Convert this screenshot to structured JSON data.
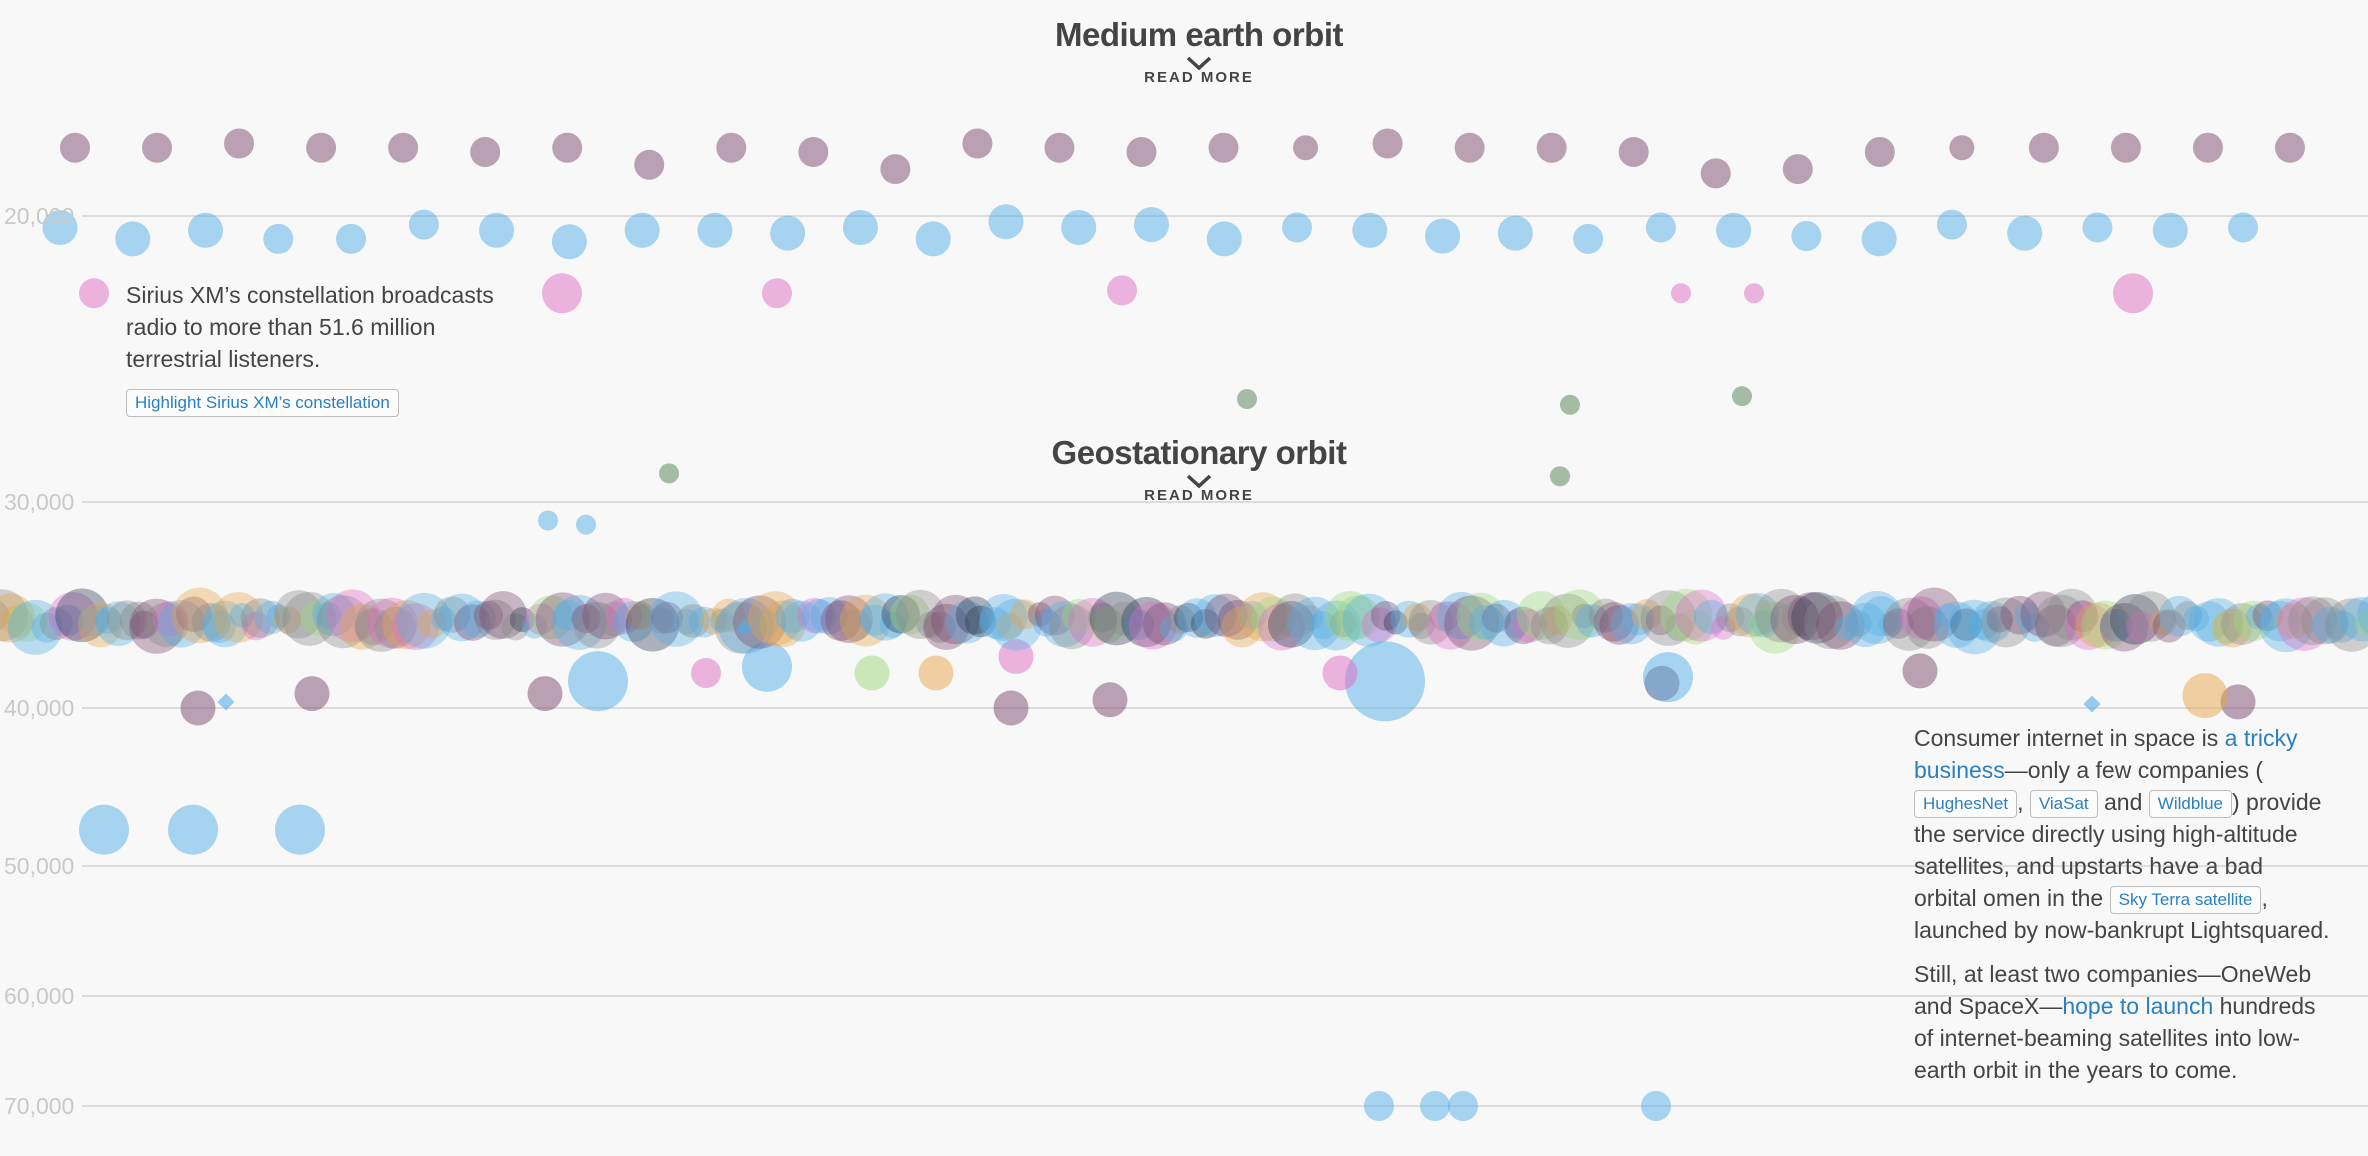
{
  "sections": {
    "meo": {
      "title": "Medium earth orbit",
      "read_more": "READ MORE"
    },
    "geo": {
      "title": "Geostationary orbit",
      "read_more": "READ MORE"
    }
  },
  "notes": {
    "sirius": {
      "text": "Sirius XM’s constellation broadcasts radio to more than 51.6 million terrestrial listeners.",
      "button": "Highlight Sirius XM’s constellation"
    },
    "internet": {
      "p1_a": "Consumer internet in space is ",
      "p1_link": "a tricky business",
      "p1_b": "—only a few companies (",
      "pill_hughes": "HughesNet",
      "comma": ", ",
      "pill_viasat": "ViaSat",
      "and": " and ",
      "pill_wildblue": "Wildblue",
      "p1_c": ") provide the service directly using high-altitude satellites, and upstarts have a bad orbital omen in the ",
      "pill_skyterra": "Sky Terra satellite",
      "p1_d": ", launched by now-bankrupt Lightsquared.",
      "p2_a": "Still, at least two companies—OneWeb and SpaceX—",
      "p2_link": "hope to launch",
      "p2_b": " hundreds of internet-beaming satellites into low-earth orbit in the years to come."
    }
  },
  "colors": {
    "blue": "#53aee6",
    "purple": "#7a4a6e",
    "pink": "#dd6cc4",
    "green": "#4f7f4f",
    "orange": "#e6a44a",
    "lightgreen": "#9cd87a",
    "darkslate": "#2d3a55",
    "gray": "#8a8a8a",
    "grid": "#dcdcdc",
    "tick": "#c9c9c9",
    "link": "#2a7fc1"
  },
  "chart_data": {
    "type": "scatter",
    "ylabel": "",
    "yticks": [
      20000,
      30000,
      40000,
      50000,
      60000,
      70000
    ],
    "ytick_labels": [
      "20,000",
      "30,000",
      "40,000",
      "50,000",
      "60,000",
      "70,000"
    ],
    "ylim": [
      14000,
      72500
    ],
    "grid": true,
    "series": [
      {
        "color": "purple",
        "points": [
          [
            1,
            18400,
            3
          ],
          [
            2,
            18400,
            3
          ],
          [
            3,
            18300,
            3
          ],
          [
            4,
            18400,
            3
          ],
          [
            5,
            18400,
            3
          ],
          [
            6,
            18500,
            3
          ],
          [
            7,
            18400,
            3
          ],
          [
            8,
            18800,
            3
          ],
          [
            9,
            18400,
            3
          ],
          [
            10,
            18500,
            3
          ],
          [
            11,
            18900,
            3
          ],
          [
            12,
            18300,
            3
          ],
          [
            13,
            18400,
            3
          ],
          [
            14,
            18500,
            3
          ],
          [
            15,
            18400,
            3
          ],
          [
            16,
            18400,
            2.5
          ],
          [
            17,
            18300,
            3
          ],
          [
            18,
            18400,
            3
          ],
          [
            19,
            18400,
            3
          ],
          [
            20,
            18500,
            3
          ],
          [
            21,
            19000,
            3
          ],
          [
            22,
            18900,
            3
          ],
          [
            23,
            18500,
            3
          ],
          [
            24,
            18400,
            2.5
          ],
          [
            25,
            18400,
            3
          ],
          [
            26,
            18400,
            3
          ],
          [
            27,
            18400,
            3
          ],
          [
            28,
            18400,
            3
          ],
          [
            1,
            40000,
            3.5
          ],
          [
            2,
            39300,
            3.5
          ],
          [
            3,
            40000,
            3.5
          ],
          [
            4,
            39600,
            3.5
          ],
          [
            5,
            38200,
            3.5
          ],
          [
            6,
            39700,
            3.5
          ],
          [
            7,
            38800,
            3.5
          ],
          [
            8,
            39300,
            3.5
          ]
        ]
      },
      {
        "color": "blue",
        "points": [
          [
            1,
            20400,
            3.5
          ],
          [
            2,
            20800,
            3.5
          ],
          [
            3,
            20500,
            3.5
          ],
          [
            4,
            20800,
            3
          ],
          [
            5,
            20800,
            3
          ],
          [
            6,
            20300,
            3
          ],
          [
            7,
            20500,
            3.5
          ],
          [
            8,
            20900,
            3.5
          ],
          [
            9,
            20500,
            3.5
          ],
          [
            10,
            20500,
            3.5
          ],
          [
            11,
            20600,
            3.5
          ],
          [
            12,
            20400,
            3.5
          ],
          [
            13,
            20800,
            3.5
          ],
          [
            14,
            20200,
            3.5
          ],
          [
            15,
            20400,
            3.5
          ],
          [
            16,
            20300,
            3.5
          ],
          [
            17,
            20800,
            3.5
          ],
          [
            18,
            20400,
            3
          ],
          [
            19,
            20500,
            3.5
          ],
          [
            20,
            20700,
            3.5
          ],
          [
            21,
            20600,
            3.5
          ],
          [
            22,
            20800,
            3
          ],
          [
            23,
            20400,
            3
          ],
          [
            24,
            20500,
            3.5
          ],
          [
            25,
            20700,
            3
          ],
          [
            26,
            20800,
            3.5
          ],
          [
            27,
            20300,
            3
          ],
          [
            28,
            20600,
            3.5
          ],
          [
            29,
            20400,
            3
          ],
          [
            30,
            20500,
            3.5
          ],
          [
            31,
            20400,
            3
          ],
          [
            1,
            30900,
            2
          ],
          [
            2,
            31100,
            2
          ],
          [
            1,
            38700,
            6
          ],
          [
            2,
            38000,
            5
          ],
          [
            3,
            38700,
            8
          ],
          [
            4,
            38500,
            5
          ],
          [
            1,
            47700,
            5
          ],
          [
            2,
            47700,
            5
          ],
          [
            3,
            47700,
            5
          ],
          [
            1,
            70000,
            3
          ],
          [
            2,
            70000,
            3
          ],
          [
            3,
            70000,
            3
          ],
          [
            4,
            70000,
            3
          ]
        ]
      },
      {
        "color": "pink",
        "points": [
          [
            1,
            22700,
            3
          ],
          [
            2,
            22700,
            4
          ],
          [
            3,
            22700,
            3
          ],
          [
            4,
            22600,
            3
          ],
          [
            5,
            22700,
            2
          ],
          [
            6,
            22700,
            2
          ],
          [
            7,
            22700,
            4
          ],
          [
            8,
            38300,
            3
          ],
          [
            9,
            37500,
            3.5
          ],
          [
            10,
            38300,
            3.5
          ]
        ]
      },
      {
        "color": "green",
        "points": [
          [
            1,
            26400,
            2
          ],
          [
            2,
            26600,
            2
          ],
          [
            3,
            26300,
            2
          ],
          [
            4,
            29000,
            2
          ],
          [
            5,
            29100,
            2
          ]
        ]
      },
      {
        "color": "orange",
        "points": [
          [
            1,
            38300,
            3.5
          ],
          [
            2,
            39400,
            4.5
          ]
        ]
      },
      {
        "color": "lightgreen",
        "points": [
          [
            1,
            38300,
            3.5
          ]
        ]
      }
    ],
    "geo_band": {
      "center": 35786,
      "note": "hundreds of overlapping satellites"
    }
  }
}
